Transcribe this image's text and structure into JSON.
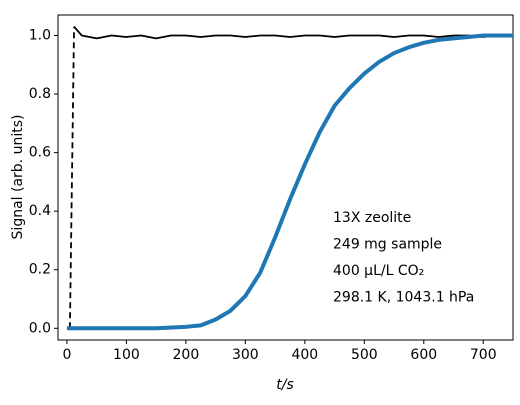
{
  "chart_data": {
    "type": "line",
    "xlabel": "t/s",
    "ylabel": "Signal (arb. units)",
    "annotations": [
      "13X zeolite",
      "249 mg sample",
      "400 μL/L CO₂",
      "298.1 K, 1043.1 hPa"
    ],
    "xlim": [
      -15,
      750
    ],
    "ylim": [
      -0.04,
      1.07
    ],
    "xticks": [
      0,
      100,
      200,
      300,
      400,
      500,
      600,
      700
    ],
    "yticks": [
      {
        "value": 0,
        "label": "0.0"
      },
      0.2,
      0.4,
      0.6,
      0.8,
      {
        "value": 1,
        "label": "1.0"
      }
    ],
    "series": [
      {
        "color": "#000000",
        "linestyle": "dashed",
        "x": [
          5,
          12
        ],
        "values": [
          0,
          1.03
        ]
      },
      {
        "color": "#000000",
        "linestyle": "solid",
        "x": [
          12,
          25,
          50,
          75,
          100,
          125,
          150,
          175,
          200,
          225,
          250,
          275,
          300,
          325,
          350,
          375,
          400,
          425,
          450,
          475,
          500,
          525,
          550,
          575,
          600,
          625,
          650,
          675,
          700,
          725,
          750
        ],
        "values": [
          1.03,
          1.0,
          0.99,
          1.0,
          0.995,
          1.0,
          0.99,
          1.0,
          1.0,
          0.995,
          1.0,
          1.0,
          0.995,
          1.0,
          1.0,
          0.995,
          1.0,
          1.0,
          0.995,
          1.0,
          1.0,
          1.0,
          0.995,
          1.0,
          1.0,
          0.995,
          1.0,
          1.0,
          0.995,
          1.0,
          1.0
        ]
      },
      {
        "color": "#1f77b4",
        "linestyle": "solid",
        "x": [
          0,
          50,
          100,
          150,
          200,
          225,
          250,
          275,
          300,
          325,
          350,
          375,
          400,
          425,
          450,
          475,
          500,
          525,
          550,
          575,
          600,
          625,
          650,
          675,
          700,
          725,
          750
        ],
        "values": [
          0,
          0,
          0,
          0,
          0.005,
          0.01,
          0.03,
          0.06,
          0.11,
          0.19,
          0.31,
          0.44,
          0.56,
          0.67,
          0.76,
          0.82,
          0.87,
          0.91,
          0.94,
          0.96,
          0.975,
          0.985,
          0.99,
          0.995,
          1.0,
          1.0,
          1.0
        ]
      }
    ]
  }
}
